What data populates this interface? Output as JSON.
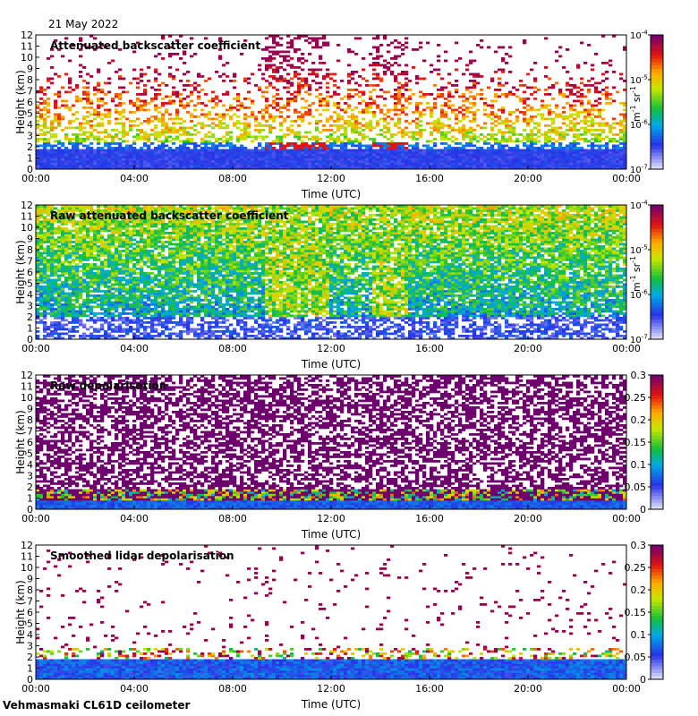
{
  "date_label": "21 May 2022",
  "footer": "Vehmasmaki CL61D ceilometer",
  "chart_data": [
    {
      "type": "heatmap",
      "title": "Attenuated backscatter coefficient",
      "xlabel": "Time (UTC)",
      "ylabel": "Height (km)",
      "x_ticks": [
        "00:00",
        "04:00",
        "08:00",
        "12:00",
        "16:00",
        "20:00",
        "00:00"
      ],
      "y_ticks": [
        "0",
        "1",
        "2",
        "3",
        "4",
        "5",
        "6",
        "7",
        "8",
        "9",
        "10",
        "11",
        "12"
      ],
      "ylim": [
        0,
        12
      ],
      "xlim_hours": [
        0,
        24
      ],
      "colorbar": {
        "scale": "log",
        "range": [
          1e-07,
          0.0001
        ],
        "ticks": [
          {
            "base": "10",
            "exp": "-4"
          },
          {
            "base": "10",
            "exp": "-5"
          },
          {
            "base": "10",
            "exp": "-6"
          },
          {
            "base": "10",
            "exp": "-7"
          }
        ],
        "unit_parts": [
          {
            "base": "m",
            "exp": "-1"
          },
          {
            "base": " sr",
            "exp": "-1"
          }
        ]
      }
    },
    {
      "type": "heatmap",
      "title": "Raw attenuated backscatter coefficient",
      "xlabel": "Time (UTC)",
      "ylabel": "Height (km)",
      "x_ticks": [
        "00:00",
        "04:00",
        "08:00",
        "12:00",
        "16:00",
        "20:00",
        "00:00"
      ],
      "y_ticks": [
        "0",
        "1",
        "2",
        "3",
        "4",
        "5",
        "6",
        "7",
        "8",
        "9",
        "10",
        "11",
        "12"
      ],
      "ylim": [
        0,
        12
      ],
      "xlim_hours": [
        0,
        24
      ],
      "colorbar": {
        "scale": "log",
        "range": [
          1e-07,
          0.0001
        ],
        "ticks": [
          {
            "base": "10",
            "exp": "-4"
          },
          {
            "base": "10",
            "exp": "-5"
          },
          {
            "base": "10",
            "exp": "-6"
          },
          {
            "base": "10",
            "exp": "-7"
          }
        ],
        "unit_parts": [
          {
            "base": "m",
            "exp": "-1"
          },
          {
            "base": " sr",
            "exp": "-1"
          }
        ]
      }
    },
    {
      "type": "heatmap",
      "title": "Raw depolarisation",
      "xlabel": "Time (UTC)",
      "ylabel": "Height (km)",
      "x_ticks": [
        "00:00",
        "04:00",
        "08:00",
        "12:00",
        "16:00",
        "20:00",
        "00:00"
      ],
      "y_ticks": [
        "0",
        "1",
        "2",
        "3",
        "4",
        "5",
        "6",
        "7",
        "8",
        "9",
        "10",
        "11",
        "12"
      ],
      "ylim": [
        0,
        12
      ],
      "xlim_hours": [
        0,
        24
      ],
      "colorbar": {
        "scale": "linear",
        "range": [
          0,
          0.3
        ],
        "ticks": [
          "0.3",
          "0.25",
          "0.2",
          "0.15",
          "0.1",
          "0.05",
          "0"
        ]
      }
    },
    {
      "type": "heatmap",
      "title": "Smoothed lidar depolarisation",
      "xlabel": "Time (UTC)",
      "ylabel": "Height (km)",
      "x_ticks": [
        "00:00",
        "04:00",
        "08:00",
        "12:00",
        "16:00",
        "20:00",
        "00:00"
      ],
      "y_ticks": [
        "0",
        "1",
        "2",
        "3",
        "4",
        "5",
        "6",
        "7",
        "8",
        "9",
        "10",
        "11",
        "12"
      ],
      "ylim": [
        0,
        12
      ],
      "xlim_hours": [
        0,
        24
      ],
      "colorbar": {
        "scale": "linear",
        "range": [
          0,
          0.3
        ],
        "ticks": [
          "0.3",
          "0.25",
          "0.2",
          "0.15",
          "0.1",
          "0.05",
          "0"
        ]
      }
    }
  ]
}
